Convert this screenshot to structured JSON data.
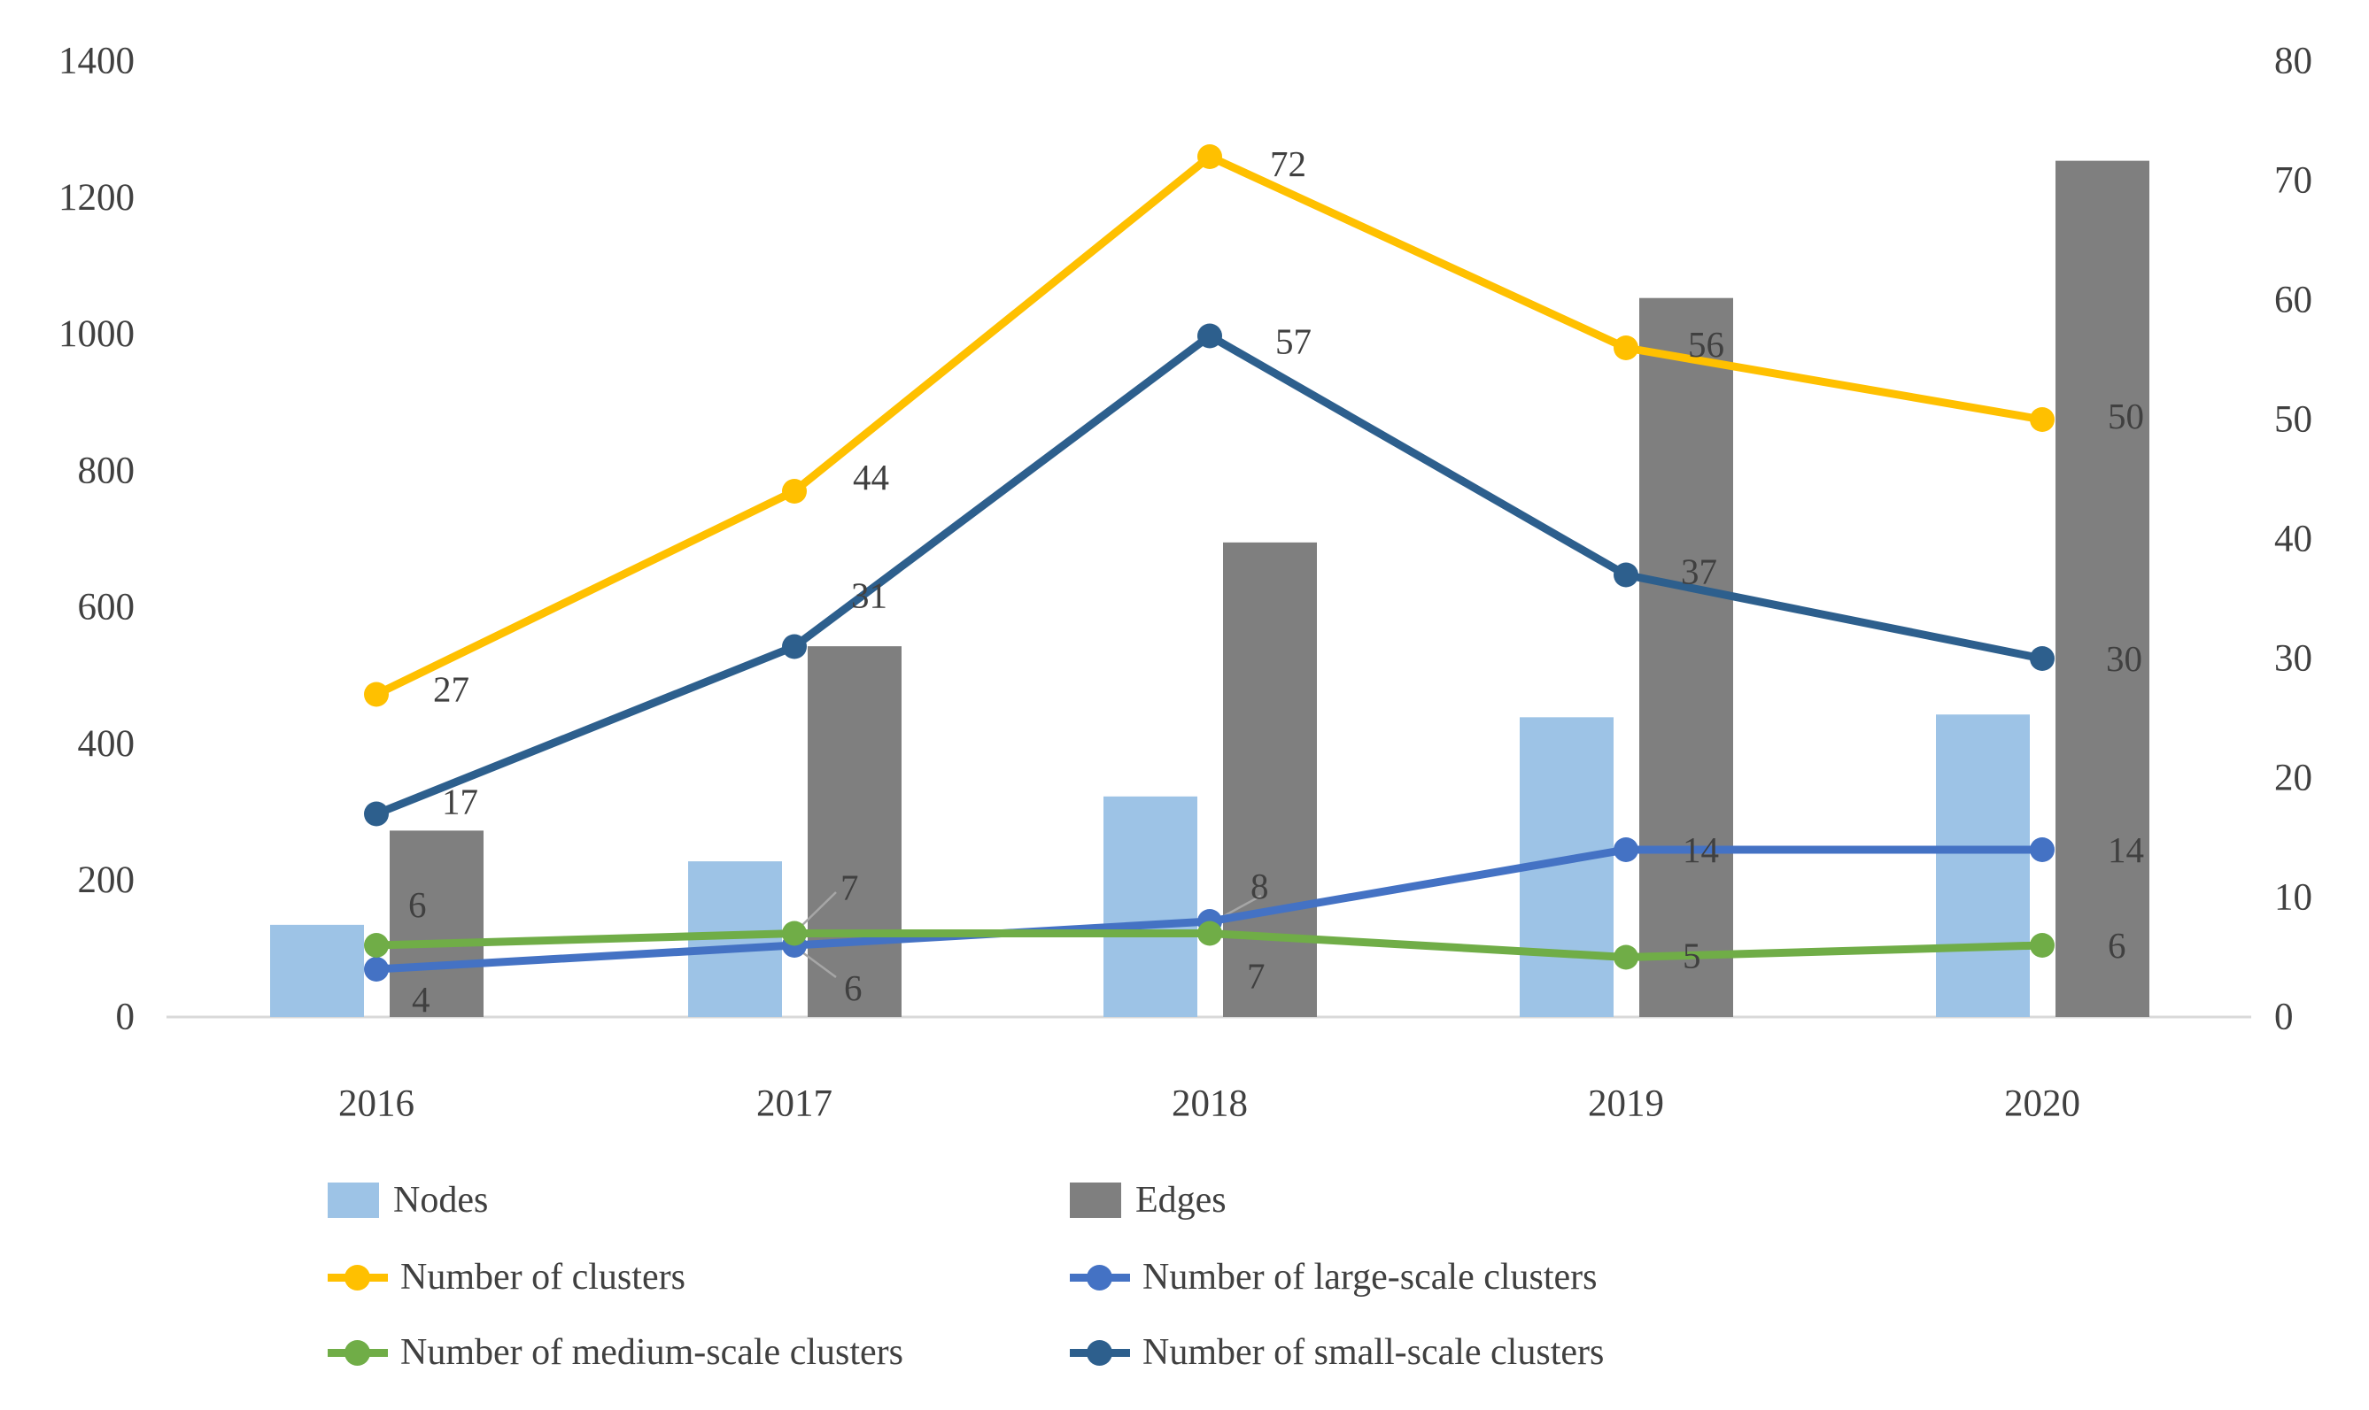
{
  "chart_data": {
    "type": "combo-bar-line",
    "categories": [
      "2016",
      "2017",
      "2018",
      "2019",
      "2020"
    ],
    "bar_series": [
      {
        "name": "Nodes",
        "axis": "left",
        "color": "#9DC3E6",
        "values": [
          135,
          228,
          323,
          439,
          443
        ]
      },
      {
        "name": "Edges",
        "axis": "left",
        "color": "#7F7F7F",
        "values": [
          273,
          543,
          695,
          1053,
          1254
        ]
      }
    ],
    "line_series": [
      {
        "name": "Number of clusters",
        "axis": "right",
        "color": "#FFC000",
        "values": [
          27,
          44,
          72,
          56,
          50
        ],
        "data_labels": [
          27,
          44,
          72,
          56,
          50
        ]
      },
      {
        "name": "Number of large-scale clusters",
        "axis": "right",
        "color": "#4472C4",
        "values": [
          4,
          6,
          8,
          14,
          14
        ],
        "data_labels": [
          4,
          6,
          8,
          14,
          14
        ]
      },
      {
        "name": "Number of medium-scale clusters",
        "axis": "right",
        "color": "#70AD47",
        "values": [
          6,
          7,
          7,
          5,
          6
        ],
        "data_labels": [
          6,
          7,
          7,
          5,
          6
        ]
      },
      {
        "name": "Number of small-scale clusters",
        "axis": "right",
        "color": "#2D5F8D",
        "values": [
          17,
          31,
          57,
          37,
          30
        ],
        "data_labels": [
          17,
          31,
          57,
          37,
          30
        ]
      }
    ],
    "left_axis": {
      "min": 0,
      "max": 1400,
      "step": 200,
      "ticks": [
        0,
        200,
        400,
        600,
        800,
        1000,
        1200,
        1400
      ]
    },
    "right_axis": {
      "min": 0,
      "max": 80,
      "step": 10,
      "ticks": [
        0,
        10,
        20,
        30,
        40,
        50,
        60,
        70,
        80
      ]
    },
    "legend": [
      {
        "label": "Nodes",
        "type": "bar",
        "color": "#9DC3E6"
      },
      {
        "label": "Edges",
        "type": "bar",
        "color": "#7F7F7F"
      },
      {
        "label": "Number of clusters",
        "type": "line",
        "color": "#FFC000"
      },
      {
        "label": "Number of large-scale clusters",
        "type": "line",
        "color": "#4472C4"
      },
      {
        "label": "Number of medium-scale clusters",
        "type": "line",
        "color": "#70AD47"
      },
      {
        "label": "Number of small-scale clusters",
        "type": "line",
        "color": "#2D5F8D"
      }
    ],
    "colors": {
      "axis_line": "#D9D9D9",
      "text": "#404040",
      "leader_line": "#A6A6A6",
      "background": "#FFFFFF"
    }
  }
}
